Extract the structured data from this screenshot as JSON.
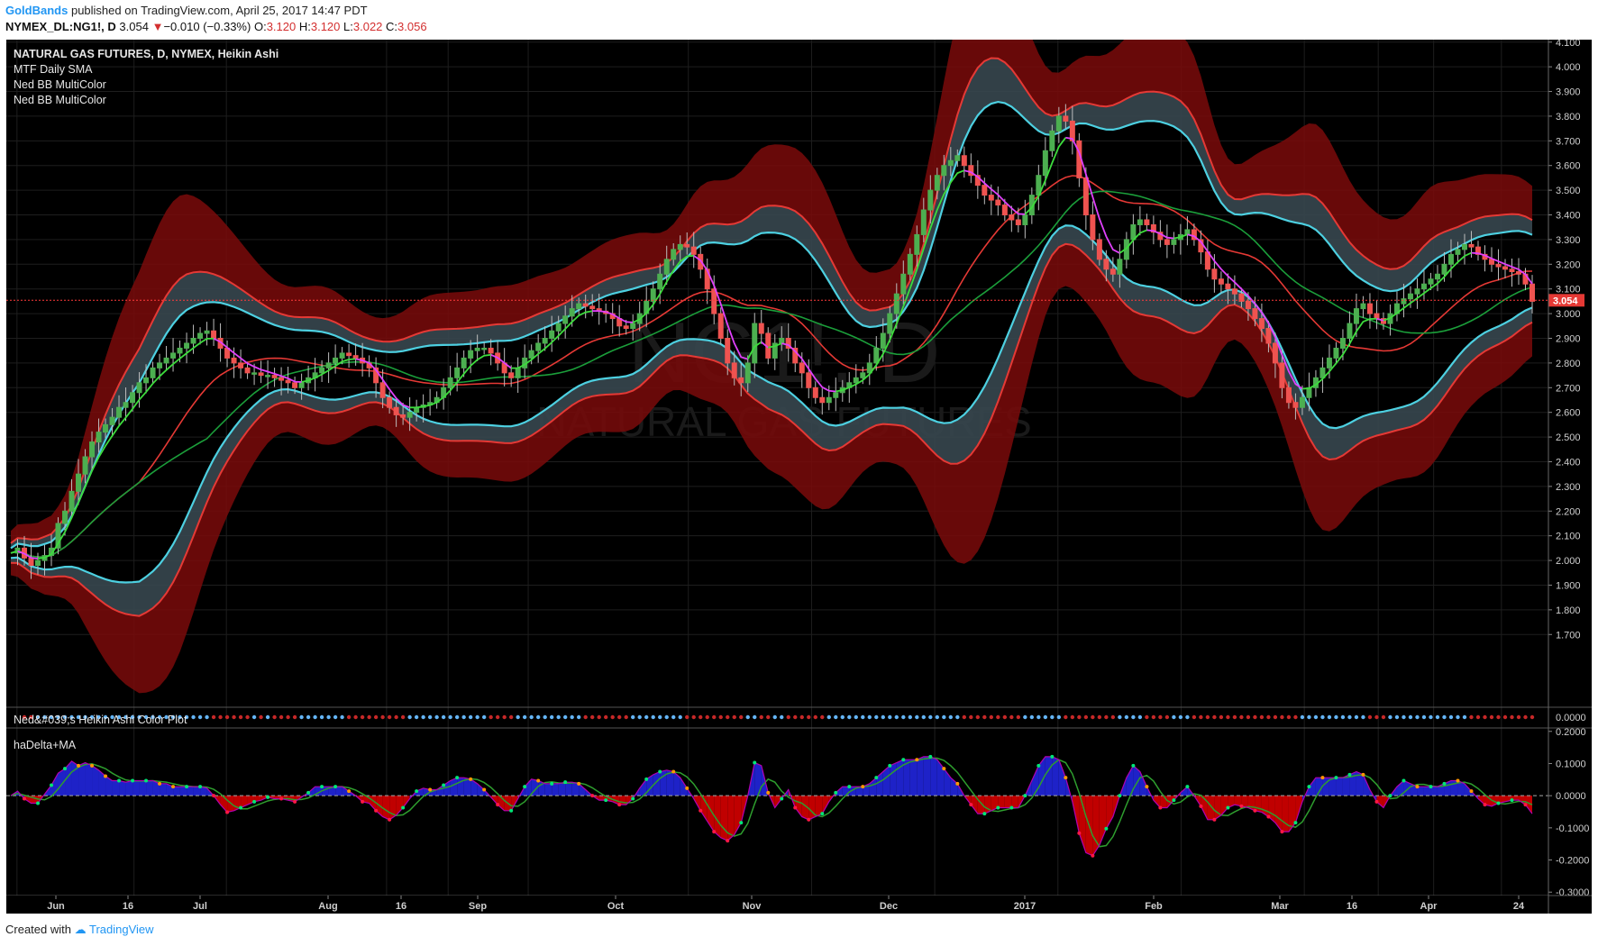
{
  "header": {
    "author": "GoldBands",
    "published_text": "published on TradingView.com, April 25, 2017 14:47 PDT",
    "symbol": "NYMEX_DL:NG1!, D",
    "last": "3.054",
    "change_arrow": "▼",
    "change": "−0.010 (−0.33%)",
    "open_label": "O:",
    "open": "3.120",
    "high_label": "H:",
    "high": "3.120",
    "low_label": "L:",
    "low": "3.022",
    "close_label": "C:",
    "close": "3.056"
  },
  "footer": {
    "created_with": "Created with",
    "brand": "TradingView"
  },
  "legend": {
    "title": "NATURAL GAS FUTURES, D, NYMEX, Heikin Ashi",
    "indicators": [
      "MTF Daily SMA",
      "Ned BB MultiColor",
      "Ned BB MultiColor"
    ],
    "pane2_title": "Ned&#039;s Heikin Ashi Color Plot",
    "pane3_title": "haDelta+MA"
  },
  "watermark": {
    "symbol": "NG1!, D",
    "name": "NATURAL GAS FUTURES"
  },
  "colors": {
    "background": "#000000",
    "bull": "#4caf50",
    "bear": "#ef5350",
    "outer_band": "#7a0a0a",
    "inner_band": "#37474f",
    "cyan_line": "#4dd0e1",
    "red_line": "#e53935",
    "green_sma": "#1b9e3a",
    "magenta": "#e040fb",
    "delta_pos": "#1e22c8",
    "delta_neg": "#c00000"
  },
  "chart_data": [
    {
      "type": "candlestick",
      "title": "NATURAL GAS FUTURES, D, NYMEX, Heikin Ashi",
      "x_ticks": [
        "Jun",
        "16",
        "Jul",
        "Aug",
        "16",
        "Sep",
        "Oct",
        "Nov",
        "Dec",
        "2017",
        "Feb",
        "Mar",
        "16",
        "Apr",
        "24"
      ],
      "y_ticks": [
        "4.100",
        "4.000",
        "3.900",
        "3.800",
        "3.700",
        "3.600",
        "3.500",
        "3.400",
        "3.300",
        "3.200",
        "3.100",
        "3.000",
        "2.900",
        "2.800",
        "2.700",
        "2.600",
        "2.500",
        "2.400",
        "2.300",
        "2.200",
        "2.100",
        "2.000",
        "1.900",
        "1.800",
        "1.700"
      ],
      "ylim": [
        1.69,
        4.11
      ],
      "last_price": "3.054",
      "close_approx": [
        2.03,
        2.05,
        2.01,
        1.98,
        2.0,
        2.02,
        2.05,
        2.15,
        2.2,
        2.28,
        2.35,
        2.42,
        2.48,
        2.52,
        2.55,
        2.58,
        2.62,
        2.64,
        2.68,
        2.72,
        2.74,
        2.78,
        2.8,
        2.82,
        2.84,
        2.86,
        2.88,
        2.9,
        2.92,
        2.93,
        2.9,
        2.86,
        2.82,
        2.8,
        2.78,
        2.76,
        2.76,
        2.75,
        2.75,
        2.74,
        2.73,
        2.72,
        2.7,
        2.72,
        2.74,
        2.76,
        2.78,
        2.8,
        2.82,
        2.84,
        2.83,
        2.82,
        2.8,
        2.78,
        2.72,
        2.66,
        2.62,
        2.59,
        2.58,
        2.6,
        2.62,
        2.63,
        2.64,
        2.66,
        2.7,
        2.74,
        2.78,
        2.82,
        2.85,
        2.86,
        2.86,
        2.84,
        2.8,
        2.76,
        2.74,
        2.78,
        2.82,
        2.85,
        2.88,
        2.9,
        2.93,
        2.96,
        2.99,
        3.02,
        3.04,
        3.03,
        3.02,
        3.01,
        3.0,
        2.98,
        2.95,
        2.94,
        2.96,
        3.0,
        3.05,
        3.1,
        3.16,
        3.22,
        3.26,
        3.28,
        3.27,
        3.24,
        3.18,
        3.1,
        3.0,
        2.9,
        2.8,
        2.74,
        2.72,
        2.8,
        2.96,
        2.92,
        2.82,
        2.88,
        2.9,
        2.86,
        2.8,
        2.76,
        2.7,
        2.66,
        2.64,
        2.66,
        2.68,
        2.7,
        2.72,
        2.74,
        2.76,
        2.8,
        2.86,
        2.92,
        3.0,
        3.08,
        3.16,
        3.24,
        3.32,
        3.42,
        3.5,
        3.56,
        3.6,
        3.62,
        3.64,
        3.6,
        3.56,
        3.52,
        3.48,
        3.46,
        3.44,
        3.4,
        3.38,
        3.36,
        3.4,
        3.48,
        3.56,
        3.66,
        3.74,
        3.8,
        3.78,
        3.7,
        3.55,
        3.4,
        3.3,
        3.22,
        3.18,
        3.16,
        3.22,
        3.3,
        3.36,
        3.38,
        3.36,
        3.33,
        3.3,
        3.28,
        3.3,
        3.32,
        3.34,
        3.3,
        3.25,
        3.18,
        3.14,
        3.12,
        3.1,
        3.08,
        3.05,
        3.02,
        2.98,
        2.94,
        2.88,
        2.8,
        2.7,
        2.64,
        2.62,
        2.66,
        2.7,
        2.74,
        2.78,
        2.82,
        2.86,
        2.9,
        2.96,
        3.02,
        3.04,
        3.0,
        2.98,
        2.96,
        3.0,
        3.04,
        3.06,
        3.08,
        3.1,
        3.12,
        3.14,
        3.16,
        3.2,
        3.24,
        3.26,
        3.28,
        3.27,
        3.24,
        3.22,
        3.2,
        3.19,
        3.18,
        3.17,
        3.16,
        3.12,
        3.05
      ],
      "series": [
        {
          "name": "MTF Daily SMA"
        },
        {
          "name": "Ned BB MultiColor"
        },
        {
          "name": "Ned BB MultiColor"
        }
      ]
    },
    {
      "type": "scatter",
      "title": "Ned&#039;s Heikin Ashi Color Plot",
      "y_ticks": [
        "0.0000"
      ]
    },
    {
      "type": "area",
      "title": "haDelta+MA",
      "y_ticks": [
        "0.2000",
        "0.1000",
        "0.0000",
        "-0.1000",
        "-0.2000",
        "-0.3000"
      ],
      "ylim": [
        -0.305,
        0.205
      ]
    }
  ]
}
